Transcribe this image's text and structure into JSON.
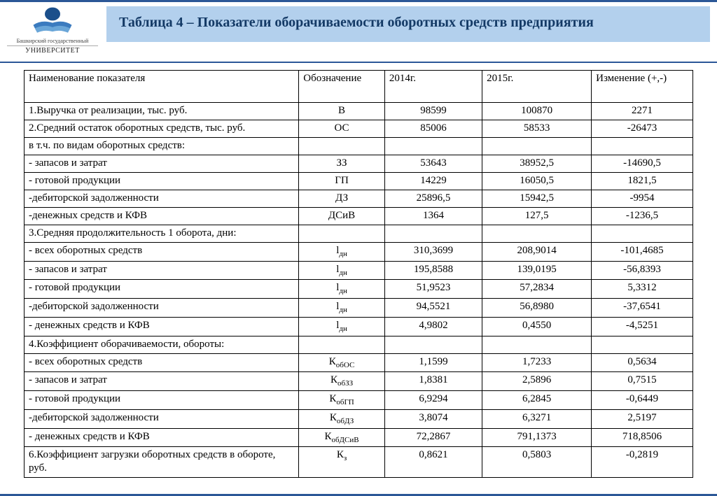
{
  "logo": {
    "caption_top": "Башкирский государственный",
    "caption_univ": "УНИВЕРСИТЕТ"
  },
  "title": "Таблица 4 – Показатели оборачиваемости оборотных средств предприятия",
  "columns": [
    "Наименование показателя",
    "Обозначение",
    "2014г.",
    "2015г.",
    "Изменение (+,-)"
  ],
  "rows": [
    {
      "name": "1.Выручка от реализации, тыс. руб.",
      "sym": "В",
      "sub": "",
      "y1": "98599",
      "y2": "100870",
      "chg": "2271"
    },
    {
      "name": "2.Средний остаток оборотных средств, тыс. руб.",
      "sym": "ОС",
      "sub": "",
      "y1": "85006",
      "y2": "58533",
      "chg": "-26473"
    },
    {
      "name": "в т.ч. по видам оборотных средств:",
      "sym": "",
      "sub": "",
      "y1": "",
      "y2": "",
      "chg": ""
    },
    {
      "name": "- запасов и затрат",
      "sym": "ЗЗ",
      "sub": "",
      "y1": "53643",
      "y2": "38952,5",
      "chg": "-14690,5"
    },
    {
      "name": "- готовой продукции",
      "sym": "ГП",
      "sub": "",
      "y1": "14229",
      "y2": "16050,5",
      "chg": "1821,5"
    },
    {
      "name": "-дебиторской задолженности",
      "sym": "ДЗ",
      "sub": "",
      "y1": "25896,5",
      "y2": "15942,5",
      "chg": "-9954"
    },
    {
      "name": "-денежных средств и КФВ",
      "sym": "ДСиВ",
      "sub": "",
      "y1": "1364",
      "y2": "127,5",
      "chg": "-1236,5"
    },
    {
      "name": "3.Средняя продолжительность 1 оборота, дни:",
      "sym": "",
      "sub": "",
      "y1": "",
      "y2": "",
      "chg": ""
    },
    {
      "name": "- всех оборотных средств",
      "sym": "l",
      "sub": "дн",
      "y1": "310,3699",
      "y2": "208,9014",
      "chg": "-101,4685"
    },
    {
      "name": "- запасов и затрат",
      "sym": "l",
      "sub": "дн",
      "y1": "195,8588",
      "y2": "139,0195",
      "chg": "-56,8393"
    },
    {
      "name": "- готовой продукции",
      "sym": "l",
      "sub": "дн",
      "y1": "51,9523",
      "y2": "57,2834",
      "chg": "5,3312"
    },
    {
      "name": "-дебиторской задолженности",
      "sym": "l",
      "sub": "дн",
      "y1": "94,5521",
      "y2": "56,8980",
      "chg": "-37,6541"
    },
    {
      "name": "- денежных средств и КФВ",
      "sym": "l",
      "sub": "дн",
      "y1": "4,9802",
      "y2": "0,4550",
      "chg": "-4,5251"
    },
    {
      "name": "4.Коэффициент оборачиваемости, обороты:",
      "sym": "",
      "sub": "",
      "y1": "",
      "y2": "",
      "chg": ""
    },
    {
      "name": "- всех оборотных средств",
      "sym": "К",
      "sub": "обОС",
      "y1": "1,1599",
      "y2": "1,7233",
      "chg": "0,5634"
    },
    {
      "name": "- запасов и затрат",
      "sym": "К",
      "sub": "обЗЗ",
      "y1": "1,8381",
      "y2": "2,5896",
      "chg": "0,7515"
    },
    {
      "name": "- готовой продукции",
      "sym": "К",
      "sub": "обГП",
      "y1": "6,9294",
      "y2": "6,2845",
      "chg": "-0,6449"
    },
    {
      "name": "-дебиторской задолженности",
      "sym": "К",
      "sub": "обДЗ",
      "y1": "3,8074",
      "y2": "6,3271",
      "chg": "2,5197"
    },
    {
      "name": "- денежных средств и КФВ",
      "sym": "К",
      "sub": "обДСиВ",
      "y1": "72,2867",
      "y2": "791,1373",
      "chg": "718,8506"
    },
    {
      "name": "6.Коэффициент загрузки оборотных средств в обороте, руб.",
      "sym": "К",
      "sub": "з",
      "y1": "0,8621",
      "y2": "0,5803",
      "chg": "-0,2819",
      "tall": true
    }
  ],
  "style": {
    "accent": "#2b5797",
    "title_bg": "#b3d0ed",
    "title_color": "#143a66",
    "border": "#000000",
    "font": "Times New Roman"
  }
}
